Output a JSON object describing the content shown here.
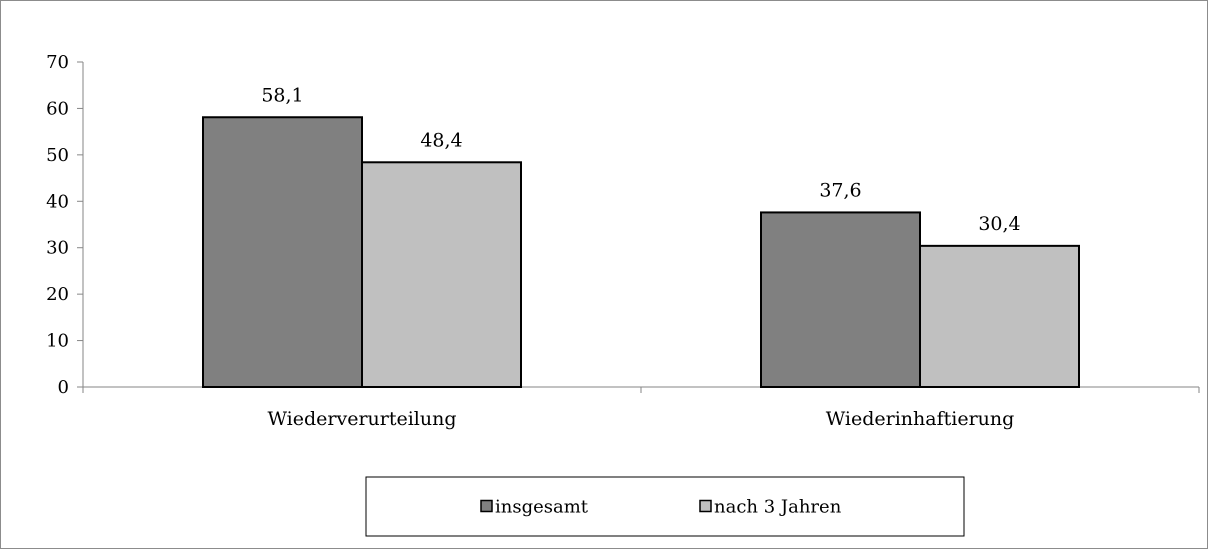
{
  "chart_data": {
    "type": "bar",
    "categories": [
      "Wiederverurteilung",
      "Wiederinhaftierung"
    ],
    "series": [
      {
        "name": "insgesamt",
        "values": [
          58.1,
          37.6
        ],
        "labels": [
          "58,1",
          "37,6"
        ],
        "color": "#808080"
      },
      {
        "name": "nach 3 Jahren",
        "values": [
          48.4,
          30.4
        ],
        "labels": [
          "48,4",
          "30,4"
        ],
        "color": "#c0c0c0"
      }
    ],
    "ylim": [
      0,
      70
    ],
    "yticks": [
      0,
      10,
      20,
      30,
      40,
      50,
      60,
      70
    ],
    "title": "",
    "xlabel": "",
    "ylabel": "",
    "grid": false,
    "legend_position": "bottom"
  }
}
